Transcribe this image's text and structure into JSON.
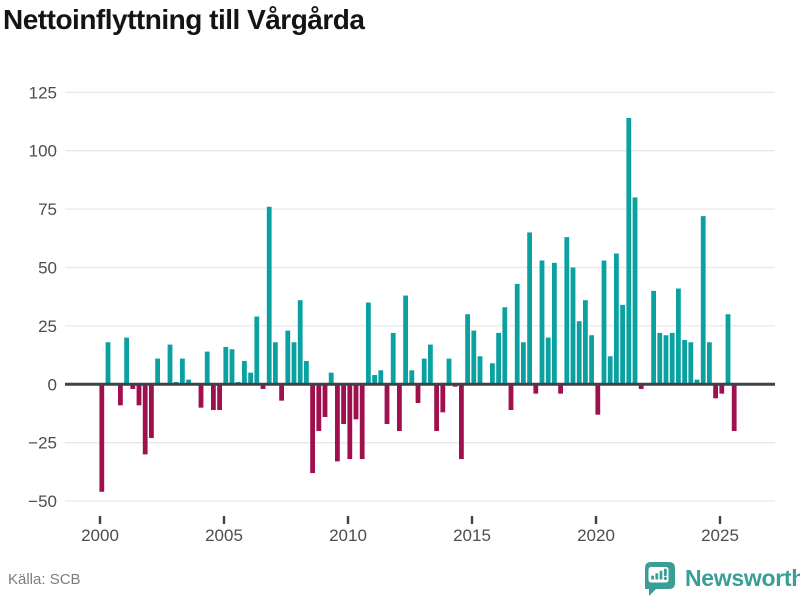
{
  "title": "Nettoinflyttning till Vårgårda",
  "source": {
    "label": "Källa: SCB"
  },
  "branding": {
    "name": "Newsworthy",
    "logo_icon": "bar-chart-speech-bubble-icon",
    "color": "#3a9e96"
  },
  "colors": {
    "positive_bar": "#0ba1a1",
    "negative_bar": "#a0104e",
    "zero_axis": "#3d434a",
    "gridline": "#e8e8e8",
    "tick_label": "#4d4d4d",
    "title_text": "#141414",
    "source_text": "#7d7d7d",
    "background": "#ffffff"
  },
  "chart_data": {
    "type": "bar",
    "title": "Nettoinflyttning till Vårgårda",
    "frequency": "quarterly",
    "start_quarter": "2000Q1",
    "end_quarter": "2025Q3",
    "x_tick_years": [
      2000,
      2005,
      2010,
      2015,
      2020,
      2025
    ],
    "y_ticks": [
      125,
      100,
      75,
      50,
      25,
      0,
      -25,
      -50
    ],
    "ylim": [
      -50,
      125
    ],
    "grid": true,
    "values_by_year": {
      "2000": [
        -46,
        18,
        0,
        -9
      ],
      "2001": [
        20,
        -2,
        -9,
        -30
      ],
      "2002": [
        -23,
        11,
        0,
        17
      ],
      "2003": [
        1,
        11,
        2,
        0
      ],
      "2004": [
        -10,
        14,
        -11,
        -11
      ],
      "2005": [
        16,
        15,
        1,
        10
      ],
      "2006": [
        5,
        29,
        -2,
        76
      ],
      "2007": [
        18,
        -7,
        23,
        18
      ],
      "2008": [
        36,
        10,
        -38,
        -20
      ],
      "2009": [
        -14,
        5,
        -33,
        -17
      ],
      "2010": [
        -32,
        -15,
        -32,
        35
      ],
      "2011": [
        4,
        6,
        -17,
        22
      ],
      "2012": [
        -20,
        38,
        6,
        -8
      ],
      "2013": [
        11,
        17,
        -20,
        -12
      ],
      "2014": [
        11,
        -1,
        -32,
        30
      ],
      "2015": [
        23,
        12,
        0,
        9
      ],
      "2016": [
        22,
        33,
        -11,
        43
      ],
      "2017": [
        18,
        65,
        -4,
        53
      ],
      "2018": [
        20,
        52,
        -4,
        63
      ],
      "2019": [
        50,
        27,
        36,
        21
      ],
      "2020": [
        -13,
        53,
        12,
        56
      ],
      "2021": [
        34,
        114,
        80,
        -2
      ],
      "2022": [
        0,
        40,
        22,
        21
      ],
      "2023": [
        22,
        41,
        19,
        18
      ],
      "2024": [
        2,
        72,
        18,
        -6
      ],
      "2025": [
        -4,
        30,
        -20
      ]
    }
  }
}
